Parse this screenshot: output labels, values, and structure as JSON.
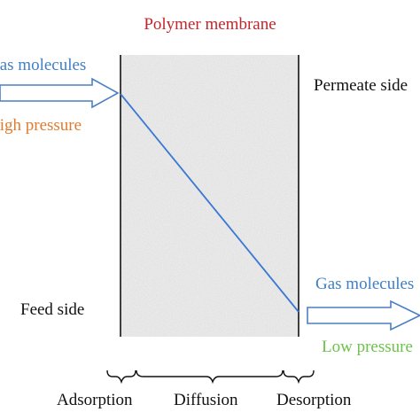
{
  "title": "Polymer membrane",
  "feed": {
    "molecules_label": "Gas molecules",
    "pressure_label": "High pressure",
    "side_label": "Feed side"
  },
  "permeate": {
    "side_label": "Permeate side",
    "molecules_label": "Gas molecules",
    "pressure_label": "Low pressure"
  },
  "stages": [
    "Adsorption",
    "Diffusion",
    "Desorption"
  ],
  "colors": {
    "title": "#c0262c",
    "feed_molecules": "#3f7fc4",
    "feed_pressure": "#e07b2e",
    "permeate_molecules": "#3f7fc4",
    "permeate_pressure": "#6cc24a",
    "arrow": "#4a7ec4",
    "gradient_line": "#3a78d4",
    "membrane_fill": "#e4e4e4",
    "text": "#111111"
  }
}
